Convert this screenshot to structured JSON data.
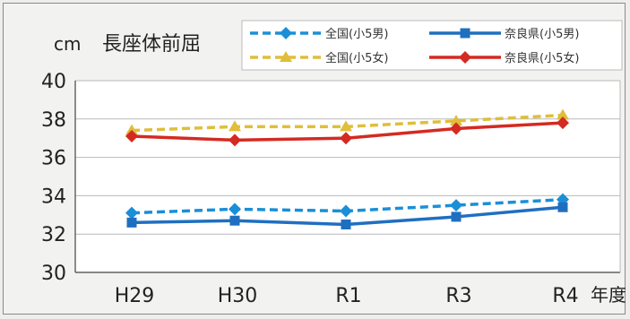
{
  "chart_data": {
    "type": "line",
    "title": "長座体前屈",
    "ylabel": "cm",
    "xlabel": "年度",
    "categories": [
      "H29",
      "H30",
      "R1",
      "R3",
      "R4"
    ],
    "ylim": [
      30,
      40
    ],
    "yticks": [
      30,
      32,
      34,
      36,
      38,
      40
    ],
    "grid": true,
    "legend_position": "top-right",
    "series": [
      {
        "name": "全国(小5男)",
        "values": [
          33.1,
          33.3,
          33.2,
          33.5,
          33.8
        ],
        "color": "#1a8fd8",
        "dashed": true,
        "marker": "diamond"
      },
      {
        "name": "奈良県(小5男)",
        "values": [
          32.6,
          32.7,
          32.5,
          32.9,
          33.4
        ],
        "color": "#1f6fc0",
        "dashed": false,
        "marker": "square"
      },
      {
        "name": "全国(小5女)",
        "values": [
          37.4,
          37.6,
          37.6,
          37.9,
          38.2
        ],
        "color": "#e0be3a",
        "dashed": true,
        "marker": "triangle"
      },
      {
        "name": "奈良県(小5女)",
        "values": [
          37.1,
          36.9,
          37.0,
          37.5,
          37.8
        ],
        "color": "#d42a22",
        "dashed": false,
        "marker": "diamond"
      }
    ]
  }
}
